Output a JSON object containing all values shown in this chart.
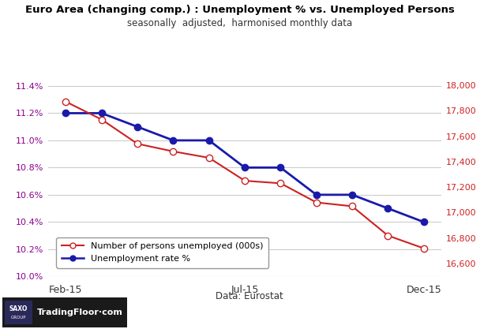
{
  "title_line1": "Euro Area (changing comp.) : Unemployment % vs. Unemployed Persons",
  "title_line2": "seasonally  adjusted,  harmonised monthly data",
  "x_tick_labels": [
    "Feb-15",
    "Jul-15",
    "Dec-15"
  ],
  "x_tick_positions": [
    0,
    5,
    10
  ],
  "months": [
    0,
    1,
    2,
    3,
    4,
    5,
    6,
    7,
    8,
    9,
    10
  ],
  "unemployment_rate": [
    11.2,
    11.2,
    11.1,
    11.0,
    11.0,
    10.8,
    10.8,
    10.6,
    10.6,
    10.5,
    10.4
  ],
  "persons_unemployed": [
    17870,
    17730,
    17540,
    17480,
    17430,
    17250,
    17230,
    17080,
    17050,
    16820,
    16720
  ],
  "rate_color": "#1a1aaa",
  "persons_color": "#cc2222",
  "ylim_left": [
    10.0,
    11.5
  ],
  "ylim_right": [
    16500,
    18100
  ],
  "yticks_left": [
    10.0,
    10.2,
    10.4,
    10.6,
    10.8,
    11.0,
    11.2,
    11.4
  ],
  "yticks_right": [
    16600,
    16800,
    17000,
    17200,
    17400,
    17600,
    17800,
    18000
  ],
  "legend_label_persons": "Number of persons unemployed (000s)",
  "legend_label_rate": "Unemployment rate %",
  "annotation": "Data: Eurostat",
  "bg_color": "#ffffff",
  "grid_color": "#cccccc",
  "title_color": "#000000",
  "axis_color_left": "#8b008b",
  "axis_color_right": "#cc2222",
  "logo_bg": "#1a1a1a",
  "logo_text": "TradingFloor·com",
  "logo_saxo": "SAXO\nGROUP"
}
